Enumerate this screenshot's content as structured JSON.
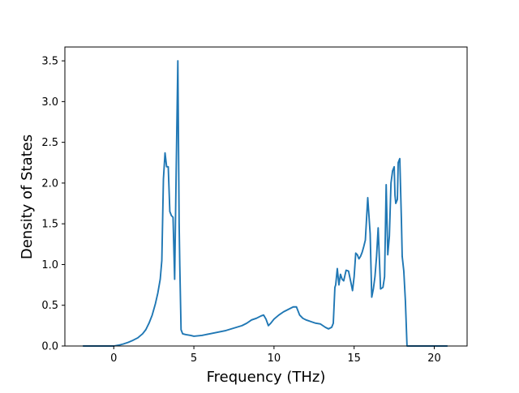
{
  "chart_data": {
    "type": "line",
    "title": "",
    "xlabel": "Frequency (THz)",
    "ylabel": "Density of States",
    "xlim": [
      -3.05,
      22.05
    ],
    "ylim": [
      0.0,
      3.67
    ],
    "xticks": [
      0,
      5,
      10,
      15,
      20
    ],
    "yticks": [
      0.0,
      0.5,
      1.0,
      1.5,
      2.0,
      2.5,
      3.0,
      3.5
    ],
    "xtick_labels": [
      "0",
      "5",
      "10",
      "15",
      "20"
    ],
    "ytick_labels": [
      "0.0",
      "0.5",
      "1.0",
      "1.5",
      "2.0",
      "2.5",
      "3.0",
      "3.5"
    ],
    "grid": false,
    "legend": "none",
    "series": [
      {
        "color": "#1f77b4",
        "x": [
          -1.9,
          -1.0,
          0.0,
          0.3,
          0.6,
          0.9,
          1.2,
          1.5,
          1.8,
          2.0,
          2.2,
          2.4,
          2.6,
          2.75,
          2.9,
          3.0,
          3.1,
          3.2,
          3.3,
          3.4,
          3.5,
          3.6,
          3.7,
          3.8,
          3.9,
          4.0,
          4.08,
          4.12,
          4.2,
          4.3,
          4.5,
          4.8,
          5.0,
          5.5,
          6.0,
          6.5,
          7.0,
          7.5,
          8.0,
          8.3,
          8.6,
          8.9,
          9.2,
          9.35,
          9.5,
          9.65,
          9.8,
          10.0,
          10.3,
          10.6,
          10.9,
          11.2,
          11.4,
          11.6,
          11.8,
          12.0,
          12.3,
          12.6,
          12.9,
          13.2,
          13.4,
          13.6,
          13.7,
          13.8,
          13.85,
          13.95,
          14.05,
          14.15,
          14.25,
          14.35,
          14.5,
          14.65,
          14.8,
          14.9,
          15.0,
          15.1,
          15.2,
          15.3,
          15.4,
          15.5,
          15.6,
          15.7,
          15.85,
          16.0,
          16.1,
          16.2,
          16.3,
          16.4,
          16.5,
          16.65,
          16.8,
          16.9,
          17.0,
          17.1,
          17.2,
          17.3,
          17.4,
          17.5,
          17.55,
          17.6,
          17.7,
          17.75,
          17.85,
          17.95,
          18.0,
          18.1,
          18.2,
          18.3,
          18.4,
          18.5,
          18.6,
          18.7,
          18.8,
          18.9,
          19.0,
          19.1,
          20.0,
          20.8
        ],
        "y": [
          0.0,
          0.0,
          0.0,
          0.01,
          0.025,
          0.045,
          0.07,
          0.1,
          0.15,
          0.2,
          0.28,
          0.38,
          0.52,
          0.65,
          0.82,
          1.05,
          2.05,
          2.37,
          2.2,
          2.2,
          1.65,
          1.6,
          1.58,
          0.82,
          2.2,
          3.5,
          1.5,
          1.0,
          0.2,
          0.15,
          0.14,
          0.13,
          0.12,
          0.13,
          0.15,
          0.17,
          0.19,
          0.22,
          0.25,
          0.28,
          0.32,
          0.34,
          0.37,
          0.38,
          0.33,
          0.25,
          0.28,
          0.33,
          0.38,
          0.42,
          0.45,
          0.48,
          0.48,
          0.38,
          0.34,
          0.32,
          0.3,
          0.28,
          0.27,
          0.23,
          0.21,
          0.23,
          0.28,
          0.72,
          0.75,
          0.95,
          0.75,
          0.88,
          0.82,
          0.8,
          0.93,
          0.92,
          0.78,
          0.68,
          0.85,
          1.14,
          1.12,
          1.07,
          1.1,
          1.15,
          1.22,
          1.3,
          1.82,
          1.38,
          0.6,
          0.7,
          0.85,
          1.1,
          1.45,
          0.7,
          0.72,
          0.85,
          1.98,
          1.12,
          1.35,
          2.0,
          2.15,
          2.2,
          1.85,
          1.75,
          1.8,
          2.25,
          2.3,
          1.55,
          1.1,
          0.92,
          0.55,
          0.0,
          0.0,
          0.0,
          0.0,
          0.0,
          0.0,
          0.0,
          0.0,
          0.0,
          0.0,
          0.0
        ]
      }
    ]
  }
}
